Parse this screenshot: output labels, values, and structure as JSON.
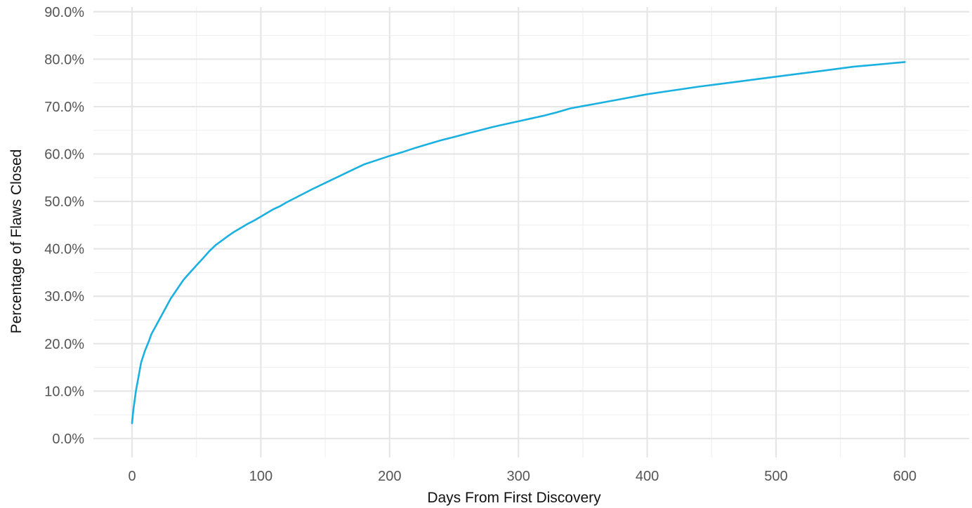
{
  "chart_data": {
    "type": "line",
    "xlabel": "Days From First Discovery",
    "ylabel": "Percentage of Flaws Closed",
    "xlim": [
      -30,
      650
    ],
    "ylim": [
      -4,
      91
    ],
    "x_ticks": [
      0,
      100,
      200,
      300,
      400,
      500,
      600
    ],
    "x_tick_labels": [
      "0",
      "100",
      "200",
      "300",
      "400",
      "500",
      "600"
    ],
    "y_ticks": [
      0,
      10,
      20,
      30,
      40,
      50,
      60,
      70,
      80,
      90
    ],
    "y_tick_labels": [
      "0.0%",
      "10.0%",
      "20.0%",
      "30.0%",
      "40.0%",
      "50.0%",
      "60.0%",
      "70.0%",
      "80.0%",
      "90.0%"
    ],
    "grid": true,
    "legend": "none",
    "series": [
      {
        "color": "#1ab0e0",
        "x": [
          0,
          1,
          2,
          3,
          5,
          7,
          10,
          13,
          15,
          18,
          20,
          25,
          30,
          35,
          40,
          45,
          50,
          55,
          60,
          65,
          70,
          75,
          80,
          85,
          90,
          95,
          100,
          105,
          110,
          115,
          120,
          130,
          140,
          150,
          160,
          170,
          180,
          190,
          200,
          210,
          220,
          230,
          240,
          250,
          260,
          270,
          280,
          290,
          300,
          310,
          320,
          330,
          340,
          350,
          360,
          370,
          380,
          390,
          400,
          420,
          440,
          460,
          480,
          500,
          520,
          540,
          560,
          580,
          600
        ],
        "y": [
          3.2,
          6.0,
          8.0,
          10.0,
          13.0,
          16.0,
          18.5,
          20.5,
          22.0,
          23.5,
          24.5,
          27.0,
          29.5,
          31.5,
          33.5,
          35.0,
          36.5,
          38.0,
          39.5,
          40.8,
          41.8,
          42.8,
          43.7,
          44.5,
          45.3,
          46.0,
          46.8,
          47.6,
          48.4,
          49.0,
          49.8,
          51.2,
          52.6,
          53.9,
          55.2,
          56.5,
          57.8,
          58.7,
          59.6,
          60.4,
          61.3,
          62.1,
          62.9,
          63.6,
          64.3,
          65.0,
          65.7,
          66.3,
          66.9,
          67.5,
          68.1,
          68.8,
          69.6,
          70.1,
          70.6,
          71.1,
          71.6,
          72.1,
          72.6,
          73.4,
          74.2,
          74.9,
          75.6,
          76.3,
          77.0,
          77.7,
          78.4,
          78.9,
          79.4
        ]
      }
    ]
  }
}
